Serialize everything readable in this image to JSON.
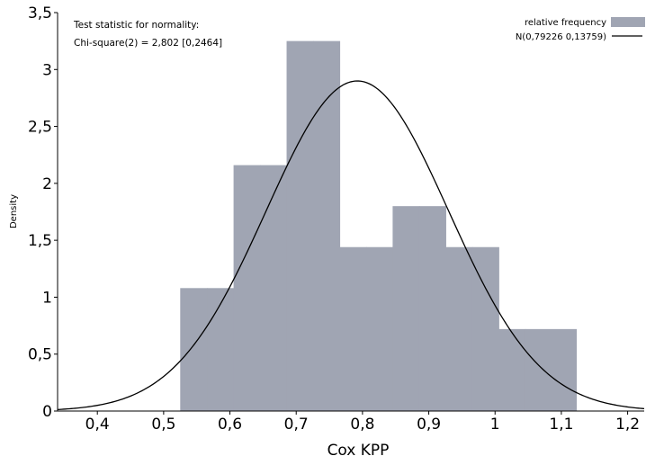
{
  "chart_data": {
    "type": "bar",
    "title": "",
    "xlabel": "Cox KPP",
    "ylabel": "Density",
    "xlim": [
      0.34,
      1.225
    ],
    "ylim": [
      0,
      3.5
    ],
    "xticks": [
      0.4,
      0.5,
      0.6,
      0.7,
      0.8,
      0.9,
      1,
      1.1,
      1.2
    ],
    "xtick_labels": [
      "0,4",
      "0,5",
      "0,6",
      "0,7",
      "0,8",
      "0,9",
      "1",
      "1,1",
      "1,2"
    ],
    "yticks": [
      0,
      0.5,
      1,
      1.5,
      2,
      2.5,
      3,
      3.5
    ],
    "ytick_labels": [
      "0",
      "0,5",
      "1",
      "1,5",
      "2",
      "2,5",
      "3",
      "3,5"
    ],
    "bins": [
      {
        "x0": 0.525,
        "x1": 0.5655,
        "value": 1.08
      },
      {
        "x0": 0.5655,
        "x1": 0.6055,
        "value": 1.08
      },
      {
        "x0": 0.6055,
        "x1": 0.6455,
        "value": 2.16
      },
      {
        "x0": 0.6455,
        "x1": 0.6855,
        "value": 2.16
      },
      {
        "x0": 0.6855,
        "x1": 0.7255,
        "value": 3.25
      },
      {
        "x0": 0.7255,
        "x1": 0.7655,
        "value": 3.25
      },
      {
        "x0": 0.7655,
        "x1": 0.8055,
        "value": 1.44
      },
      {
        "x0": 0.8055,
        "x1": 0.8455,
        "value": 1.44
      },
      {
        "x0": 0.8455,
        "x1": 0.8855,
        "value": 1.8
      },
      {
        "x0": 0.8855,
        "x1": 0.9255,
        "value": 1.8
      },
      {
        "x0": 0.9255,
        "x1": 0.9655,
        "value": 1.44
      },
      {
        "x0": 0.9655,
        "x1": 1.0055,
        "value": 1.44
      },
      {
        "x0": 1.0055,
        "x1": 1.0455,
        "value": 0.72
      },
      {
        "x0": 1.0455,
        "x1": 1.1225,
        "value": 0.72
      }
    ],
    "series": [
      {
        "name": "relative frequency",
        "kind": "histogram",
        "color": "#a0a5b3"
      },
      {
        "name": "N(0,79226 0,13759)",
        "kind": "normal-curve",
        "mean": 0.79226,
        "sd": 0.13759,
        "color": "#000000"
      }
    ],
    "annotations": {
      "line1": "Test statistic for normality:",
      "line2": "Chi-square(2) = 2,802 [0,2464]"
    },
    "legend_placement": "top-right",
    "grid": false,
    "colors": {
      "bar_fill": "#a0a5b3",
      "curve": "#000000",
      "axis": "#000000"
    }
  }
}
